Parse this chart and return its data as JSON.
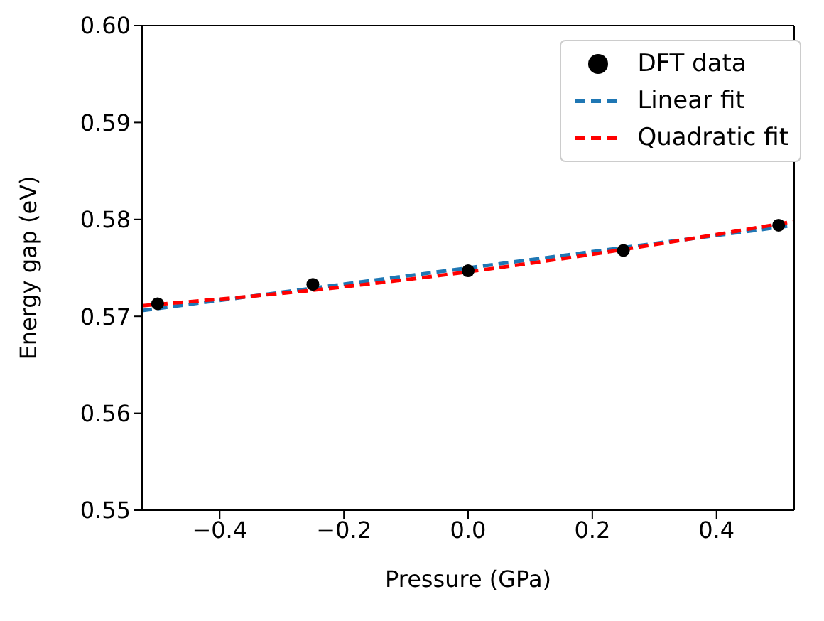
{
  "chart_data": {
    "type": "line",
    "xlabel": "Pressure (GPa)",
    "ylabel": "Energy gap (eV)",
    "xlim": [
      -0.525,
      0.525
    ],
    "ylim": [
      0.55,
      0.6
    ],
    "xticks": [
      {
        "value": -0.4,
        "label": "−0.4"
      },
      {
        "value": -0.2,
        "label": "−0.2"
      },
      {
        "value": 0,
        "label": "0.0"
      },
      {
        "value": 0.2,
        "label": "0.2"
      },
      {
        "value": 0.4,
        "label": "0.4"
      }
    ],
    "yticks": [
      0.55,
      0.56,
      0.57,
      0.58,
      0.59,
      {
        "value": 0.6,
        "label": "0.60"
      }
    ],
    "grid": false,
    "legend": "top right",
    "series": [
      {
        "name": "DFT data",
        "type": "scatter",
        "marker": "circle",
        "color": "#000000",
        "x": [
          -0.5,
          -0.25,
          0,
          0.25,
          0.5
        ],
        "values": [
          0.5713,
          0.5733,
          0.5747,
          0.5768,
          0.5794
        ]
      },
      {
        "name": "Linear fit",
        "type": "line",
        "line_style": "dashed",
        "color": "#1f77b4",
        "x": [
          -0.525,
          0,
          0.525
        ],
        "values": [
          0.5706,
          0.575,
          0.5794
        ]
      },
      {
        "name": "Quadratic fit",
        "type": "line",
        "line_style": "dashed",
        "color": "#ff0000",
        "x": [
          -0.525,
          -0.25,
          0,
          0.25,
          0.525
        ],
        "values": [
          0.5711,
          0.5727,
          0.5746,
          0.5769,
          0.5798
        ]
      }
    ]
  }
}
